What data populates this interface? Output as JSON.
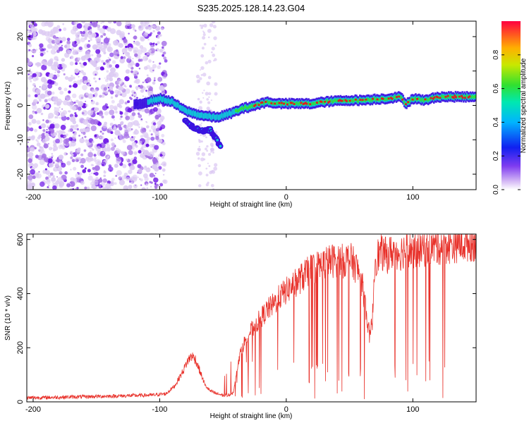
{
  "title": "S235.2025.128.14.23.G04",
  "colors": {
    "snr_line": "#e8312a",
    "scatter_low": "#dccaf3",
    "scatter_mid": "#a46ee6",
    "scatter_high": "#6a10e6",
    "band_outer": "#3a12e0",
    "band_inner": "#10c8d8",
    "band_core": "#2ee63c",
    "band_peak": "#e8141e"
  },
  "chart_data": [
    {
      "type": "heatmap",
      "xlabel": "Height of straight line (km)",
      "ylabel": "Frequency (Hz)",
      "xlim": [
        -205,
        150
      ],
      "ylim": [
        -24.5,
        24.5
      ],
      "x_ticks": [
        -200,
        -100,
        0,
        100
      ],
      "y_ticks": [
        -20,
        -10,
        0,
        10,
        20
      ],
      "grid": false,
      "colorbar": {
        "label": "Normalized spectral amplitude",
        "range": [
          0,
          1
        ],
        "ticks": [
          0.0,
          0.2,
          0.4,
          0.6,
          0.8
        ],
        "colormap": "rainbow (white-violet-blue-cyan-green-yellow-red)"
      },
      "dominant_frequency": {
        "x": [
          -120,
          -100,
          -90,
          -80,
          -72,
          -65,
          -55,
          -45,
          -35,
          -25,
          -15,
          -5,
          0,
          10,
          20,
          30,
          40,
          50,
          60,
          70,
          80,
          90,
          95,
          100,
          110,
          120,
          130,
          140,
          150
        ],
        "y": [
          0,
          2,
          1,
          -1.5,
          -2.5,
          -3,
          -3.5,
          -2.5,
          -1,
          0,
          1,
          0.5,
          0.5,
          0.5,
          0.5,
          1,
          1.3,
          1.5,
          1.5,
          1.8,
          2,
          2.5,
          0.5,
          2,
          1.5,
          2.5,
          2.5,
          2.5,
          2.5
        ]
      },
      "secondary_branch": {
        "x": [
          -80,
          -75,
          -70,
          -65,
          -60,
          -55,
          -52
        ],
        "y": [
          -4,
          -6,
          -7,
          -7.5,
          -7,
          -10,
          -12
        ]
      },
      "noise_region": {
        "x_range": [
          -205,
          -95
        ],
        "y_range": [
          -24.5,
          24.5
        ]
      },
      "noise_stripe": {
        "x_range": [
          -70,
          -55
        ],
        "y_range": [
          -24.5,
          24.5
        ]
      }
    },
    {
      "type": "line",
      "xlabel": "Height of straight line (km)",
      "ylabel": "SNR (10 * v/v)",
      "xlim": [
        -205,
        150
      ],
      "ylim": [
        0,
        620
      ],
      "x_ticks": [
        -200,
        -100,
        0,
        100
      ],
      "y_ticks": [
        0,
        200,
        400,
        600
      ],
      "grid": false,
      "series": [
        {
          "x": [
            -205,
            -190,
            -170,
            -150,
            -130,
            -115,
            -105,
            -95,
            -88,
            -82,
            -78,
            -75,
            -72,
            -68,
            -64,
            -60,
            -55,
            -50,
            -46,
            -42,
            -40,
            -38,
            -35,
            -30,
            -25,
            -20,
            -15,
            -10,
            -5,
            0,
            5,
            10,
            15,
            20,
            25,
            30,
            35,
            40,
            45,
            50,
            55,
            58,
            60,
            62,
            64,
            66,
            68,
            70,
            72,
            75,
            80,
            85,
            90,
            95,
            100,
            105,
            110,
            115,
            120,
            125,
            130,
            135,
            140,
            145,
            150
          ],
          "values": [
            15,
            16,
            18,
            20,
            22,
            24,
            25,
            30,
            60,
            110,
            150,
            170,
            160,
            110,
            60,
            40,
            30,
            25,
            25,
            35,
            80,
            150,
            200,
            250,
            280,
            310,
            340,
            360,
            390,
            410,
            430,
            450,
            470,
            490,
            500,
            510,
            520,
            525,
            520,
            530,
            500,
            470,
            430,
            380,
            300,
            240,
            300,
            520,
            540,
            550,
            540,
            560,
            550,
            570,
            560,
            565,
            570,
            575,
            575,
            580,
            580,
            585,
            585,
            590,
            590
          ]
        }
      ],
      "deep_dropouts": {
        "x_range": [
          -50,
          150
        ],
        "floor_values_range": [
          10,
          150
        ]
      }
    }
  ]
}
